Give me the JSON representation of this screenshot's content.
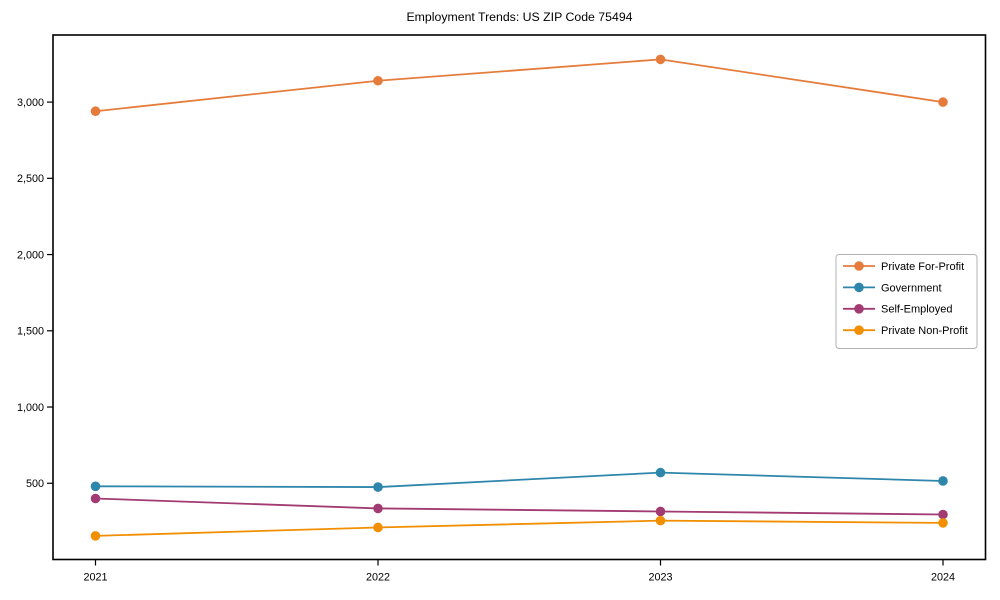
{
  "chart_data": {
    "type": "line",
    "title": "Employment Trends: US ZIP Code 75494",
    "xlabel": "",
    "ylabel": "",
    "x": [
      2021,
      2022,
      2023,
      2024
    ],
    "x_tick_labels": [
      "2021",
      "2022",
      "2023",
      "2024"
    ],
    "yticks": [
      500,
      1000,
      1500,
      2000,
      2500,
      3000
    ],
    "ytick_labels": [
      "500",
      "1,000",
      "1,500",
      "2,000",
      "2,500",
      "3,000"
    ],
    "ylim": [
      0,
      3440
    ],
    "grid": false,
    "legend_position": "center right",
    "series": [
      {
        "name": "Private For-Profit",
        "color": "#E57C3C",
        "values": [
          2940,
          3140,
          3280,
          3000
        ]
      },
      {
        "name": "Government",
        "color": "#2E86AB",
        "values": [
          480,
          475,
          570,
          515
        ]
      },
      {
        "name": "Self-Employed",
        "color": "#A23B72",
        "values": [
          400,
          335,
          315,
          295
        ]
      },
      {
        "name": "Private Non-Profit",
        "color": "#F18F01",
        "values": [
          155,
          210,
          255,
          240
        ]
      }
    ],
    "colors": {
      "axis": "#000000",
      "text": "#000000",
      "legend_border": "#b3b3b3",
      "background": "#ffffff"
    }
  }
}
